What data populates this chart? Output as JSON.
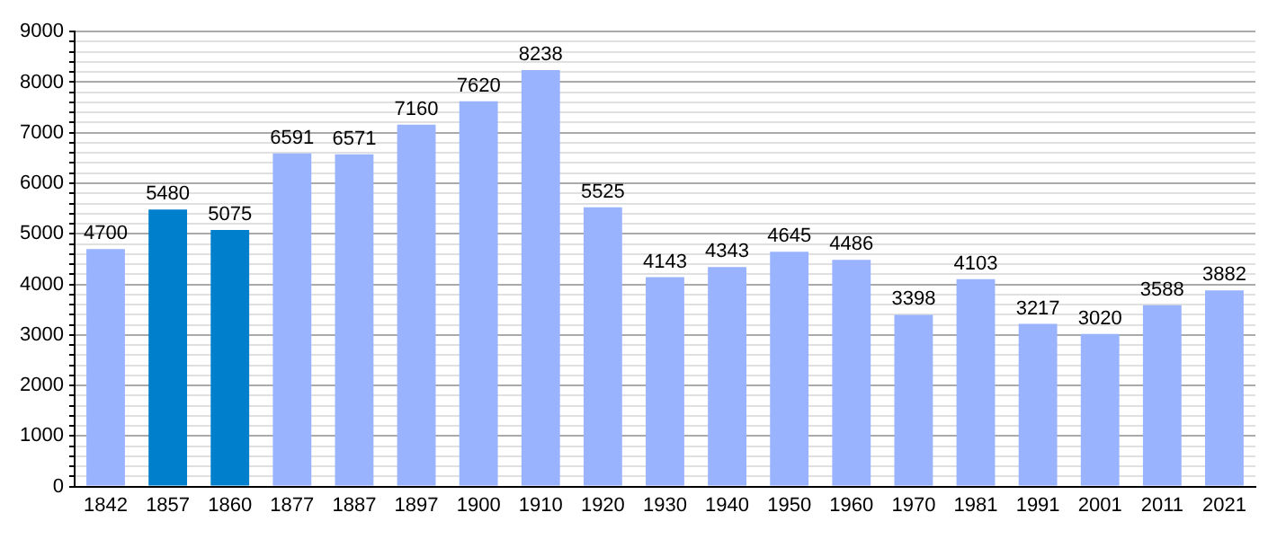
{
  "chart_data": {
    "type": "bar",
    "categories": [
      "1842",
      "1857",
      "1860",
      "1877",
      "1887",
      "1897",
      "1900",
      "1910",
      "1920",
      "1930",
      "1940",
      "1950",
      "1960",
      "1970",
      "1981",
      "1991",
      "2001",
      "2011",
      "2021"
    ],
    "values": [
      4700,
      5480,
      5075,
      6591,
      6571,
      7160,
      7620,
      8238,
      5525,
      4143,
      4343,
      4645,
      4486,
      3398,
      4103,
      3217,
      3020,
      3588,
      3882
    ],
    "colors": [
      "#99b3ff",
      "#0080cc",
      "#0080cc",
      "#99b3ff",
      "#99b3ff",
      "#99b3ff",
      "#99b3ff",
      "#99b3ff",
      "#99b3ff",
      "#99b3ff",
      "#99b3ff",
      "#99b3ff",
      "#99b3ff",
      "#99b3ff",
      "#99b3ff",
      "#99b3ff",
      "#99b3ff",
      "#99b3ff",
      "#99b3ff"
    ],
    "ylim": [
      0,
      9000
    ],
    "yticks": [
      0,
      {
        "value": 200,
        "label": null
      },
      {
        "value": 400,
        "label": null
      },
      {
        "value": 600,
        "label": null
      },
      {
        "value": 800,
        "label": null
      },
      1000,
      {
        "value": 1200,
        "label": null
      },
      {
        "value": 1400,
        "label": null
      },
      {
        "value": 1600,
        "label": null
      },
      {
        "value": 1800,
        "label": null
      },
      2000,
      {
        "value": 2200,
        "label": null
      },
      {
        "value": 2400,
        "label": null
      },
      {
        "value": 2600,
        "label": null
      },
      {
        "value": 2800,
        "label": null
      },
      3000,
      {
        "value": 3200,
        "label": null
      },
      {
        "value": 3400,
        "label": null
      },
      {
        "value": 3600,
        "label": null
      },
      {
        "value": 3800,
        "label": null
      },
      4000,
      {
        "value": 4200,
        "label": null
      },
      {
        "value": 4400,
        "label": null
      },
      {
        "value": 4600,
        "label": null
      },
      {
        "value": 4800,
        "label": null
      },
      5000,
      {
        "value": 5200,
        "label": null
      },
      {
        "value": 5400,
        "label": null
      },
      {
        "value": 5600,
        "label": null
      },
      {
        "value": 5800,
        "label": null
      },
      6000,
      {
        "value": 6200,
        "label": null
      },
      {
        "value": 6400,
        "label": null
      },
      {
        "value": 6600,
        "label": null
      },
      {
        "value": 6800,
        "label": null
      },
      7000,
      {
        "value": 7200,
        "label": null
      },
      {
        "value": 7400,
        "label": null
      },
      {
        "value": 7600,
        "label": null
      },
      {
        "value": 7800,
        "label": null
      },
      8000,
      {
        "value": 8200,
        "label": null
      },
      {
        "value": 8400,
        "label": null
      },
      {
        "value": 8600,
        "label": null
      },
      {
        "value": 8800,
        "label": null
      },
      9000
    ],
    "grid": "y",
    "data_labels": true,
    "legend": false
  }
}
